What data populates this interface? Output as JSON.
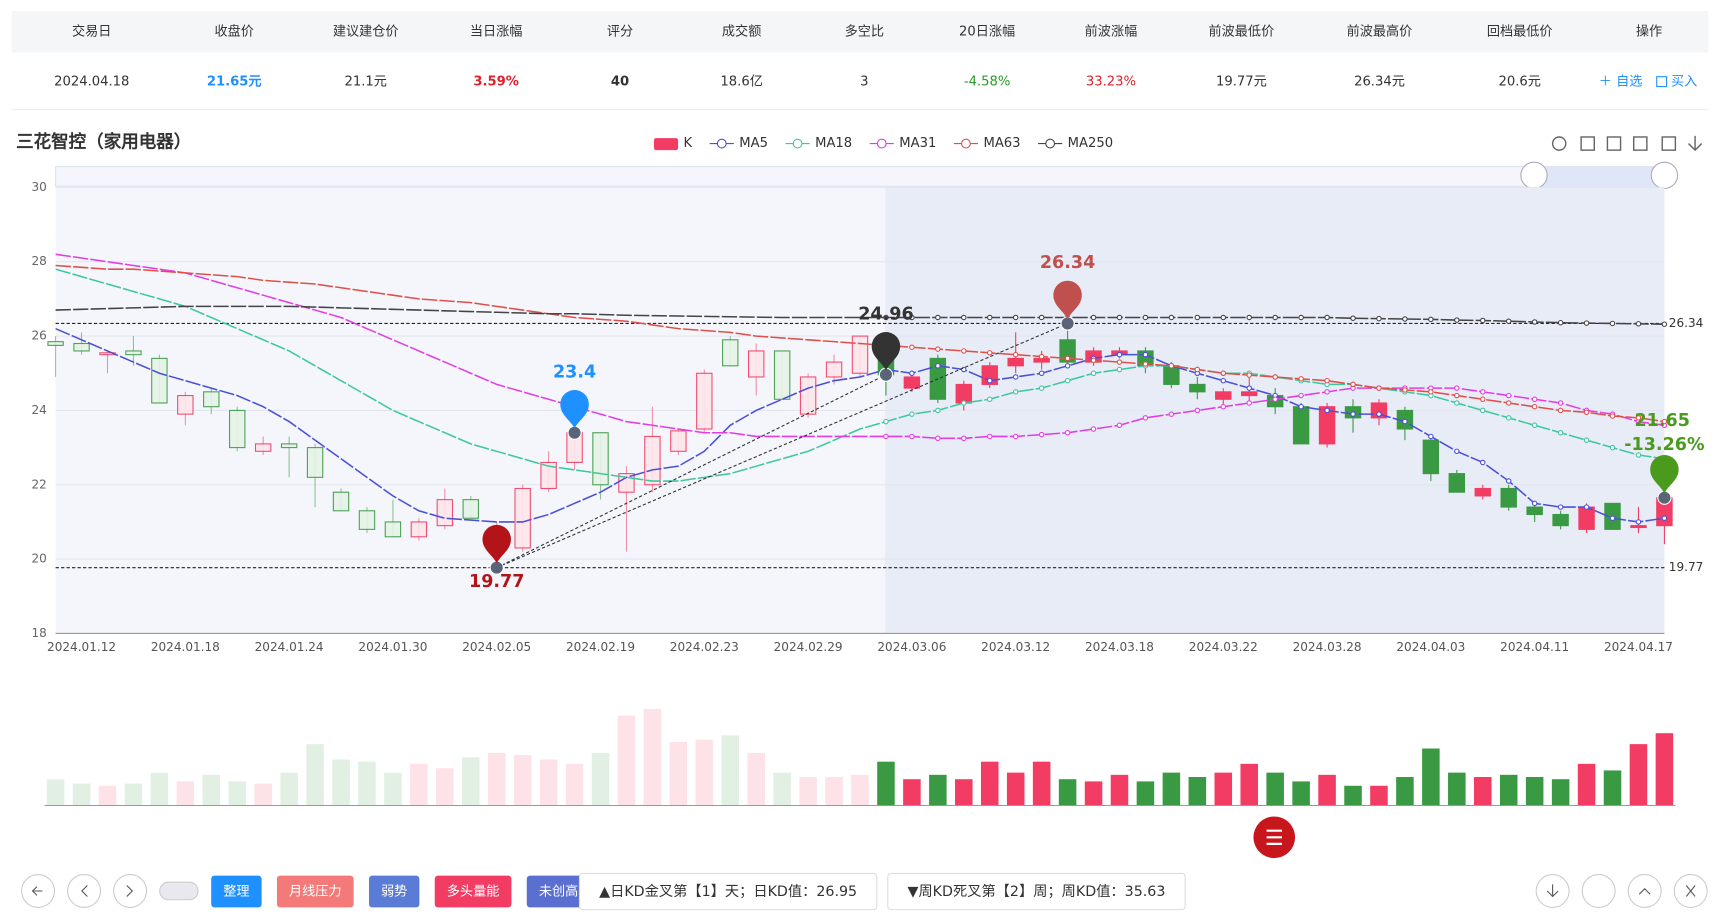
{
  "table": {
    "headers": [
      "交易日",
      "收盘价",
      "建议建仓价",
      "当日涨幅",
      "评分",
      "成交额",
      "多空比",
      "20日涨幅",
      "前波涨幅",
      "前波最低价",
      "前波最高价",
      "回档最低价",
      "操作"
    ],
    "row": [
      "2024.04.18",
      "21.65元",
      "21.1元",
      "3.59%",
      "40",
      "18.6亿",
      "3",
      "-4.58%",
      "33.23%",
      "19.77元",
      "26.34元",
      "20.6元"
    ],
    "actions": [
      "＋ 自选",
      "买入"
    ]
  },
  "chart_data": {
    "type": "candlestick",
    "title": "三花智控（家用电器）",
    "categories": [
      null,
      "2024.01.12",
      null,
      null,
      null,
      "2024.01.18",
      null,
      null,
      null,
      "2024.01.24",
      null,
      null,
      null,
      "2024.01.30",
      null,
      null,
      null,
      "2024.02.05",
      null,
      null,
      null,
      "2024.02.19",
      null,
      null,
      null,
      "2024.02.23",
      null,
      null,
      null,
      "2024.02.29",
      null,
      null,
      null,
      "2024.03.06",
      null,
      null,
      null,
      "2024.03.12",
      null,
      null,
      null,
      "2024.03.18",
      null,
      null,
      null,
      "2024.03.22",
      null,
      null,
      null,
      "2024.03.28",
      null,
      null,
      null,
      "2024.04.03",
      null,
      null,
      null,
      "2024.04.11",
      null,
      null,
      null,
      "2024.04.17",
      null
    ],
    "candles": {
      "name": "K",
      "up_color": "#f23c63",
      "down_color": "#3a9a44",
      "open": [
        25.85,
        25.8,
        25.5,
        25.6,
        25.4,
        23.9,
        24.5,
        24.0,
        22.9,
        23.1,
        23.0,
        21.8,
        21.3,
        21.0,
        20.6,
        20.9,
        21.6,
        20.4,
        20.3,
        21.9,
        22.6,
        23.4,
        21.8,
        22.0,
        22.9,
        23.5,
        25.9,
        24.9,
        25.6,
        23.9,
        24.9,
        25.0,
        25.9,
        24.6,
        25.4,
        24.2,
        24.7,
        25.2,
        25.3,
        25.9,
        25.3,
        25.5,
        25.6,
        25.2,
        24.7,
        24.3,
        24.4,
        24.4,
        24.1,
        23.1,
        24.1,
        23.8,
        24.0,
        23.2,
        22.3,
        21.7,
        21.9,
        21.4,
        21.2,
        20.8,
        21.5,
        20.85,
        20.9
      ],
      "high": [
        26.0,
        26.1,
        25.6,
        26.0,
        25.5,
        24.5,
        24.6,
        24.1,
        23.3,
        23.3,
        23.1,
        21.9,
        21.4,
        21.6,
        21.1,
        21.9,
        21.7,
        21.0,
        22.0,
        22.9,
        23.5,
        23.4,
        22.5,
        24.1,
        23.5,
        25.1,
        26.0,
        25.8,
        25.6,
        25.0,
        25.5,
        26.0,
        26.0,
        25.0,
        25.5,
        24.8,
        25.3,
        26.1,
        25.6,
        26.34,
        25.7,
        25.7,
        25.7,
        25.3,
        24.9,
        24.6,
        24.9,
        24.6,
        24.2,
        24.2,
        24.3,
        24.3,
        24.1,
        23.3,
        22.4,
        22.0,
        22.0,
        21.5,
        21.3,
        21.5,
        21.5,
        21.4,
        21.8
      ],
      "low": [
        24.9,
        25.5,
        25.0,
        25.2,
        24.2,
        23.6,
        23.9,
        22.9,
        22.8,
        22.2,
        21.4,
        21.3,
        20.7,
        20.6,
        20.5,
        20.8,
        21.1,
        19.77,
        20.2,
        21.8,
        22.4,
        21.6,
        20.2,
        21.8,
        22.8,
        23.4,
        25.2,
        24.4,
        24.3,
        23.8,
        24.7,
        24.9,
        24.4,
        24.5,
        24.2,
        24.0,
        24.6,
        25.0,
        25.1,
        25.2,
        25.2,
        25.4,
        25.0,
        24.6,
        24.3,
        24.1,
        24.2,
        23.9,
        23.1,
        23.0,
        23.4,
        23.6,
        23.2,
        22.1,
        21.8,
        21.6,
        21.3,
        21.0,
        20.8,
        20.7,
        20.8,
        20.7,
        20.4
      ],
      "close": [
        25.75,
        25.6,
        25.55,
        25.5,
        24.2,
        24.4,
        24.1,
        23.0,
        23.1,
        23.0,
        22.2,
        21.3,
        20.8,
        20.6,
        21.0,
        21.6,
        21.1,
        20.8,
        21.9,
        22.6,
        23.4,
        22.0,
        22.3,
        23.3,
        23.45,
        25.0,
        25.2,
        25.6,
        24.3,
        24.9,
        25.3,
        26.0,
        24.96,
        24.9,
        24.3,
        24.7,
        25.2,
        25.4,
        25.4,
        25.3,
        25.6,
        25.6,
        25.2,
        24.7,
        24.5,
        24.5,
        24.5,
        24.1,
        23.1,
        24.1,
        23.8,
        24.2,
        23.5,
        22.3,
        21.8,
        21.9,
        21.4,
        21.2,
        20.9,
        21.4,
        20.8,
        20.9,
        21.65
      ]
    },
    "series": [
      {
        "name": "MA5",
        "color": "#4b4fd8",
        "values": [
          26.2,
          25.9,
          25.6,
          25.3,
          25.0,
          24.8,
          24.6,
          24.4,
          24.1,
          23.7,
          23.2,
          22.7,
          22.2,
          21.7,
          21.3,
          21.1,
          21.05,
          21.0,
          21.0,
          21.2,
          21.5,
          21.8,
          22.2,
          22.4,
          22.5,
          22.9,
          23.6,
          24.0,
          24.3,
          24.6,
          24.8,
          24.9,
          25.1,
          25.0,
          25.2,
          25.1,
          24.8,
          24.9,
          25.0,
          25.2,
          25.4,
          25.5,
          25.5,
          25.2,
          25.0,
          24.8,
          24.6,
          24.4,
          24.1,
          24.0,
          23.9,
          23.9,
          23.7,
          23.3,
          22.9,
          22.6,
          22.1,
          21.5,
          21.4,
          21.4,
          21.1,
          21.0,
          21.1
        ]
      },
      {
        "name": "MA18",
        "color": "#3cc89e",
        "values": [
          27.8,
          27.6,
          27.4,
          27.2,
          27.0,
          26.8,
          26.5,
          26.2,
          25.9,
          25.6,
          25.2,
          24.8,
          24.4,
          24.0,
          23.7,
          23.4,
          23.1,
          22.9,
          22.7,
          22.5,
          22.4,
          22.3,
          22.2,
          22.1,
          22.1,
          22.2,
          22.3,
          22.5,
          22.7,
          22.9,
          23.2,
          23.5,
          23.7,
          23.9,
          24.0,
          24.2,
          24.3,
          24.5,
          24.6,
          24.8,
          25.0,
          25.1,
          25.2,
          25.2,
          25.1,
          25.0,
          25.0,
          24.9,
          24.8,
          24.7,
          24.7,
          24.6,
          24.5,
          24.4,
          24.2,
          24.0,
          23.8,
          23.6,
          23.4,
          23.2,
          23.0,
          22.8,
          22.7
        ]
      },
      {
        "name": "MA31",
        "color": "#e43ce4",
        "values": [
          28.2,
          28.1,
          28.0,
          27.9,
          27.8,
          27.7,
          27.5,
          27.3,
          27.1,
          26.9,
          26.7,
          26.5,
          26.2,
          25.9,
          25.6,
          25.3,
          25.0,
          24.7,
          24.5,
          24.3,
          24.1,
          23.9,
          23.7,
          23.6,
          23.5,
          23.4,
          23.4,
          23.3,
          23.3,
          23.3,
          23.3,
          23.3,
          23.3,
          23.3,
          23.25,
          23.25,
          23.3,
          23.3,
          23.35,
          23.4,
          23.5,
          23.6,
          23.8,
          23.9,
          24.0,
          24.1,
          24.2,
          24.3,
          24.4,
          24.5,
          24.6,
          24.6,
          24.6,
          24.6,
          24.6,
          24.5,
          24.4,
          24.3,
          24.2,
          24.0,
          23.9,
          23.7,
          23.6
        ]
      },
      {
        "name": "MA63",
        "color": "#e0504a",
        "values": [
          27.9,
          27.85,
          27.8,
          27.8,
          27.75,
          27.7,
          27.65,
          27.6,
          27.5,
          27.45,
          27.4,
          27.3,
          27.2,
          27.1,
          27.0,
          26.95,
          26.9,
          26.8,
          26.7,
          26.6,
          26.5,
          26.45,
          26.4,
          26.3,
          26.2,
          26.15,
          26.1,
          26.0,
          25.95,
          25.9,
          25.85,
          25.8,
          25.75,
          25.7,
          25.65,
          25.6,
          25.55,
          25.5,
          25.45,
          25.4,
          25.35,
          25.3,
          25.25,
          25.2,
          25.1,
          25.0,
          24.95,
          24.9,
          24.85,
          24.8,
          24.7,
          24.6,
          24.55,
          24.5,
          24.4,
          24.3,
          24.2,
          24.1,
          24.0,
          23.95,
          23.85,
          23.8,
          23.7
        ]
      },
      {
        "name": "MA250",
        "color": "#444444",
        "values": [
          26.7,
          26.72,
          26.74,
          26.76,
          26.78,
          26.8,
          26.8,
          26.8,
          26.8,
          26.8,
          26.78,
          26.76,
          26.74,
          26.72,
          26.7,
          26.68,
          26.66,
          26.64,
          26.62,
          26.6,
          26.6,
          26.58,
          26.56,
          26.55,
          26.54,
          26.53,
          26.52,
          26.51,
          26.5,
          26.5,
          26.5,
          26.5,
          26.5,
          26.5,
          26.5,
          26.5,
          26.5,
          26.5,
          26.5,
          26.5,
          26.5,
          26.5,
          26.5,
          26.5,
          26.5,
          26.5,
          26.5,
          26.5,
          26.5,
          26.5,
          26.48,
          26.47,
          26.46,
          26.45,
          26.43,
          26.42,
          26.4,
          26.38,
          26.36,
          26.35,
          26.34,
          26.33,
          26.32
        ]
      }
    ],
    "volume": {
      "values": [
        24,
        20,
        18,
        20,
        30,
        22,
        28,
        22,
        20,
        30,
        56,
        42,
        40,
        30,
        38,
        34,
        44,
        48,
        46,
        42,
        38,
        48,
        82,
        88,
        58,
        60,
        64,
        48,
        30,
        26,
        26,
        28,
        40,
        24,
        28,
        24,
        40,
        30,
        40,
        24,
        22,
        28,
        22,
        30,
        26,
        30,
        38,
        30,
        22,
        28,
        18,
        18,
        26,
        52,
        30,
        26,
        28,
        26,
        24,
        38,
        32,
        56,
        66
      ]
    },
    "markers": [
      {
        "value": 19.77,
        "color": "#b3141a"
      },
      {
        "value": 23.4,
        "color": "#1e90ff"
      },
      {
        "value": 24.96,
        "color": "#333333"
      },
      {
        "value": 26.34,
        "color": "#c0504d"
      },
      {
        "value": 21.65,
        "color": "#4a9a1e",
        "change": "-13.26%"
      }
    ],
    "hlines": [
      26.34,
      19.77
    ],
    "ylim": [
      18,
      30
    ],
    "yticks": [
      18,
      20,
      22,
      24,
      26,
      28,
      30
    ],
    "grid": true
  },
  "toolbar": {
    "tags": [
      {
        "text": "整理",
        "color": "#1e90ff"
      },
      {
        "text": "月线压力",
        "color": "#f47a7a"
      },
      {
        "text": "弱势",
        "color": "#5a7bd6"
      },
      {
        "text": "多头量能",
        "color": "#f23c63"
      },
      {
        "text": "未创高",
        "color": "#5b6fd0"
      }
    ],
    "signals": [
      "▲日KD金叉第【1】天；日KD值：26.95",
      "▼周KD死叉第【2】周；周KD值：35.63"
    ]
  }
}
